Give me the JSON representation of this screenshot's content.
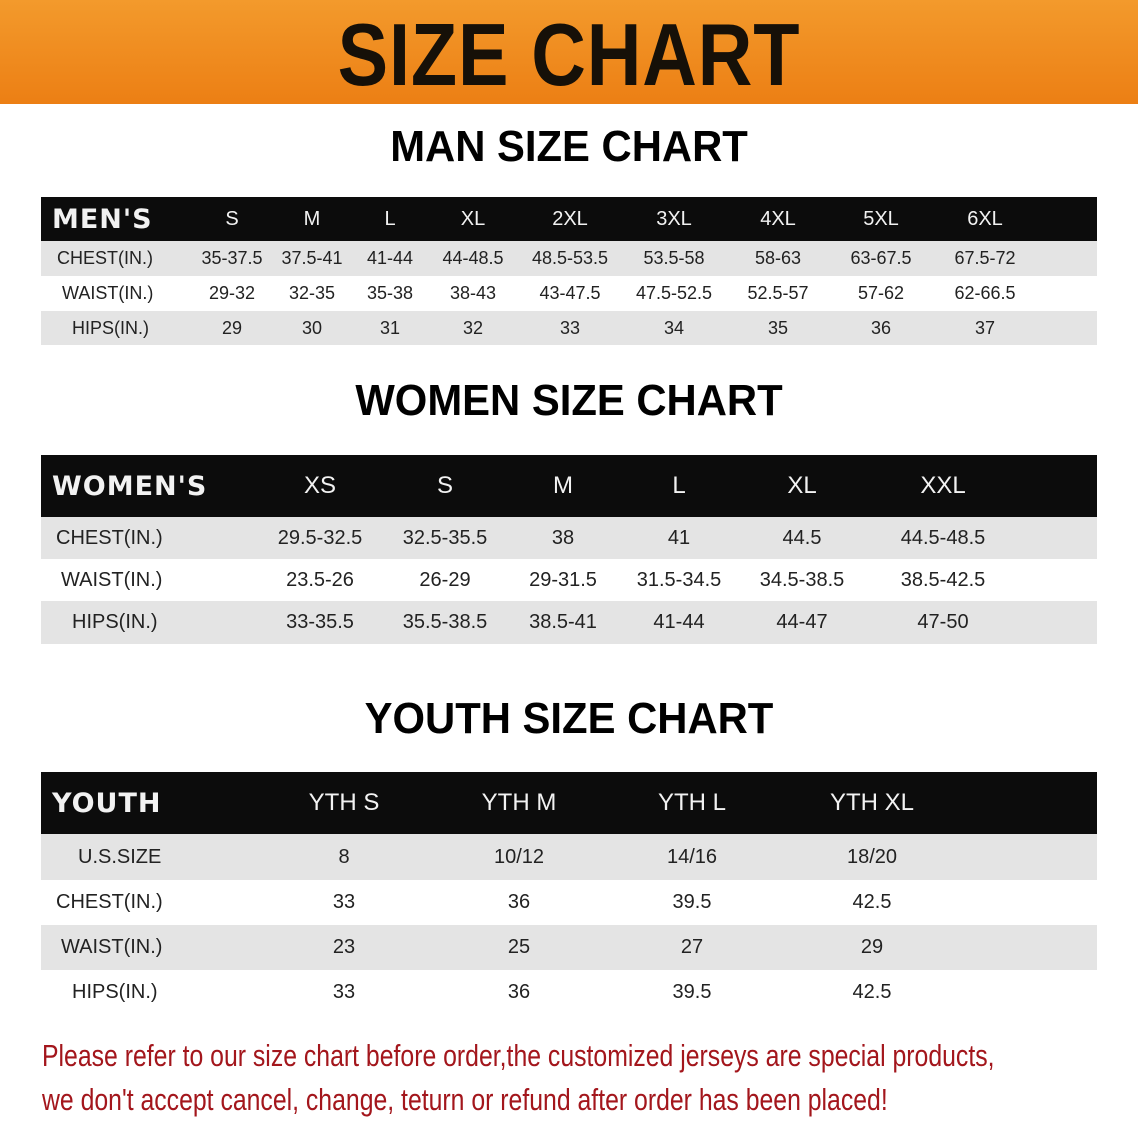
{
  "banner_title": "SIZE CHART",
  "men": {
    "title": "MAN SIZE CHART",
    "header": [
      "MEN'S",
      "S",
      "M",
      "L",
      "XL",
      "2XL",
      "3XL",
      "4XL",
      "5XL",
      "6XL"
    ],
    "rows": [
      [
        "CHEST(IN.)",
        "35-37.5",
        "37.5-41",
        "41-44",
        "44-48.5",
        "48.5-53.5",
        "53.5-58",
        "58-63",
        "63-67.5",
        "67.5-72"
      ],
      [
        "WAIST(IN.)",
        "29-32",
        "32-35",
        "35-38",
        "38-43",
        "43-47.5",
        "47.5-52.5",
        "52.5-57",
        "57-62",
        "62-66.5"
      ],
      [
        "HIPS(IN.)",
        "29",
        "30",
        "31",
        "32",
        "33",
        "34",
        "35",
        "36",
        "37"
      ]
    ]
  },
  "women": {
    "title": "WOMEN SIZE CHART",
    "header": [
      "WOMEN'S",
      "XS",
      "S",
      "M",
      "L",
      "XL",
      "XXL"
    ],
    "rows": [
      [
        "CHEST(IN.)",
        "29.5-32.5",
        "32.5-35.5",
        "38",
        "41",
        "44.5",
        "44.5-48.5"
      ],
      [
        "WAIST(IN.)",
        "23.5-26",
        "26-29",
        "29-31.5",
        "31.5-34.5",
        "34.5-38.5",
        "38.5-42.5"
      ],
      [
        "HIPS(IN.)",
        "33-35.5",
        "35.5-38.5",
        "38.5-41",
        "41-44",
        "44-47",
        "47-50"
      ]
    ]
  },
  "youth": {
    "title": "YOUTH SIZE CHART",
    "header": [
      "YOUTH",
      "YTH S",
      "YTH M",
      "YTH L",
      "YTH XL"
    ],
    "rows": [
      [
        "U.S.SIZE",
        "8",
        "10/12",
        "14/16",
        "18/20"
      ],
      [
        "CHEST(IN.)",
        "33",
        "36",
        "39.5",
        "42.5"
      ],
      [
        "WAIST(IN.)",
        "23",
        "25",
        "27",
        "29"
      ],
      [
        "HIPS(IN.)",
        "33",
        "36",
        "39.5",
        "42.5"
      ]
    ]
  },
  "notice": {
    "line1": "Please refer to our size chart before order,the customized jerseys are special products,",
    "line2": "we don't accept cancel, change, teturn or refund after order has been placed!"
  },
  "colors": {
    "banner": "#ee8418",
    "header_row": "#0c0c0c",
    "notice": "#a3161c"
  }
}
